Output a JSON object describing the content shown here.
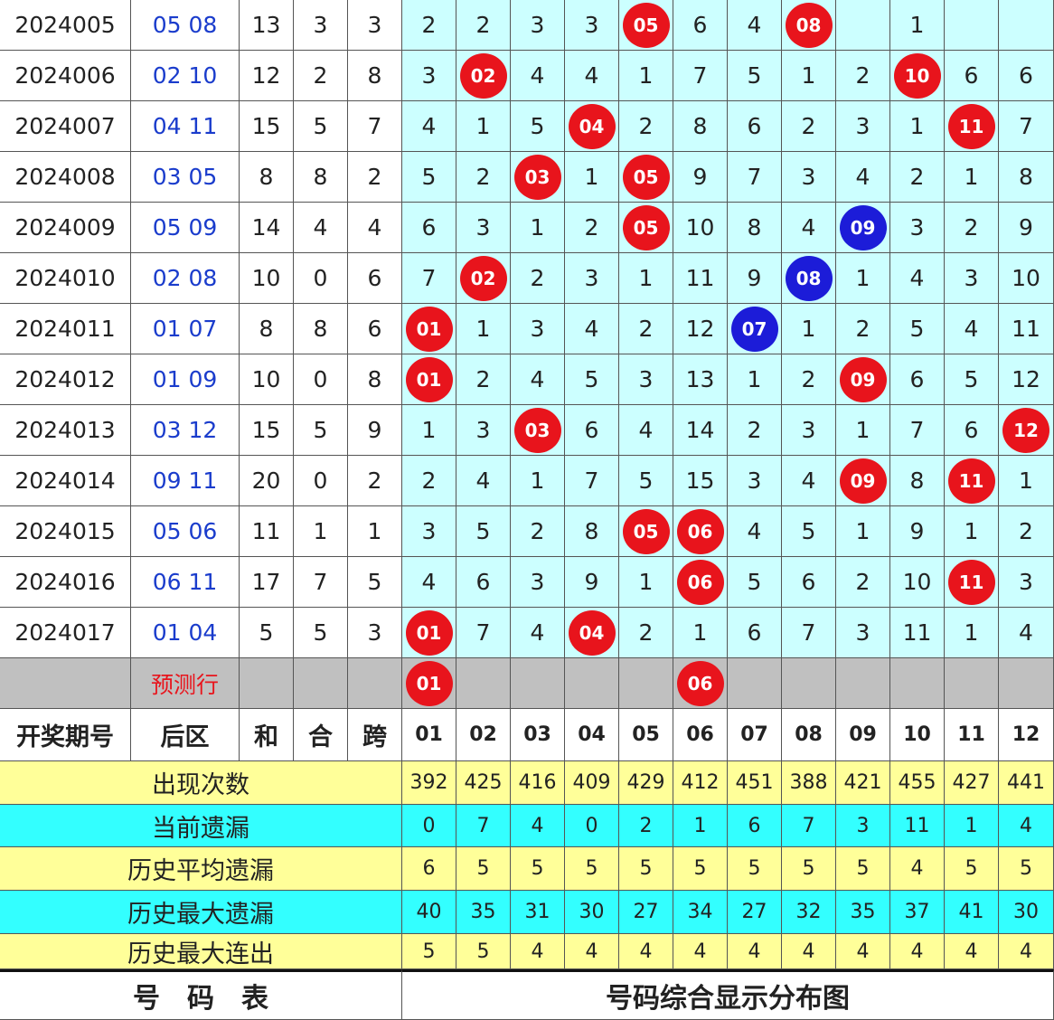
{
  "header": [
    "开奖期号",
    "后区",
    "和",
    "合",
    "跨",
    "01",
    "02",
    "03",
    "04",
    "05",
    "06",
    "07",
    "08",
    "09",
    "10",
    "11",
    "12"
  ],
  "rows": [
    {
      "period": "2024005",
      "back": "05 08",
      "sum": 13,
      "odd": 3,
      "span": 3,
      "cells": [
        2,
        2,
        3,
        3,
        {
          "text": "05",
          "color": "#e8141c"
        },
        6,
        4,
        {
          "text": "08",
          "color": "#e8141c"
        },
        null,
        1,
        null,
        null
      ]
    },
    {
      "period": "2024006",
      "back": "02 10",
      "sum": 12,
      "odd": 2,
      "span": 8,
      "cells": [
        3,
        {
          "text": "02",
          "color": "#e8141c"
        },
        4,
        4,
        1,
        7,
        5,
        1,
        2,
        {
          "text": "10",
          "color": "#e8141c"
        },
        6,
        6
      ]
    },
    {
      "period": "2024007",
      "back": "04 11",
      "sum": 15,
      "odd": 5,
      "span": 7,
      "cells": [
        4,
        1,
        5,
        {
          "text": "04",
          "color": "#e8141c"
        },
        2,
        8,
        6,
        2,
        3,
        1,
        {
          "text": "11",
          "color": "#e8141c"
        },
        7
      ]
    },
    {
      "period": "2024008",
      "back": "03 05",
      "sum": 8,
      "odd": 8,
      "span": 2,
      "cells": [
        5,
        2,
        {
          "text": "03",
          "color": "#e8141c"
        },
        1,
        {
          "text": "05",
          "color": "#e8141c"
        },
        9,
        7,
        3,
        4,
        2,
        1,
        8
      ]
    },
    {
      "period": "2024009",
      "back": "05 09",
      "sum": 14,
      "odd": 4,
      "span": 4,
      "cells": [
        6,
        3,
        1,
        2,
        {
          "text": "05",
          "color": "#e8141c"
        },
        10,
        8,
        4,
        {
          "text": "09",
          "color": "#1c1cd8"
        },
        3,
        2,
        9
      ]
    },
    {
      "period": "2024010",
      "back": "02 08",
      "sum": 10,
      "odd": 0,
      "span": 6,
      "cells": [
        7,
        {
          "text": "02",
          "color": "#e8141c"
        },
        2,
        3,
        1,
        11,
        9,
        {
          "text": "08",
          "color": "#1c1cd8"
        },
        1,
        4,
        3,
        10
      ]
    },
    {
      "period": "2024011",
      "back": "01 07",
      "sum": 8,
      "odd": 8,
      "span": 6,
      "cells": [
        {
          "text": "01",
          "color": "#e8141c"
        },
        1,
        3,
        4,
        2,
        12,
        {
          "text": "07",
          "color": "#1c1cd8"
        },
        1,
        2,
        5,
        4,
        11
      ]
    },
    {
      "period": "2024012",
      "back": "01 09",
      "sum": 10,
      "odd": 0,
      "span": 8,
      "cells": [
        {
          "text": "01",
          "color": "#e8141c"
        },
        2,
        4,
        5,
        3,
        13,
        1,
        2,
        {
          "text": "09",
          "color": "#e8141c"
        },
        6,
        5,
        12
      ]
    },
    {
      "period": "2024013",
      "back": "03 12",
      "sum": 15,
      "odd": 5,
      "span": 9,
      "cells": [
        1,
        3,
        {
          "text": "03",
          "color": "#e8141c"
        },
        6,
        4,
        14,
        2,
        3,
        1,
        7,
        6,
        {
          "text": "12",
          "color": "#e8141c"
        }
      ]
    },
    {
      "period": "2024014",
      "back": "09 11",
      "sum": 20,
      "odd": 0,
      "span": 2,
      "cells": [
        2,
        4,
        1,
        7,
        5,
        15,
        3,
        4,
        {
          "text": "09",
          "color": "#e8141c"
        },
        8,
        {
          "text": "11",
          "color": "#e8141c"
        },
        1
      ]
    },
    {
      "period": "2024015",
      "back": "05 06",
      "sum": 11,
      "odd": 1,
      "span": 1,
      "cells": [
        3,
        5,
        2,
        8,
        {
          "text": "05",
          "color": "#e8141c"
        },
        {
          "text": "06",
          "color": "#e8141c"
        },
        4,
        5,
        1,
        9,
        1,
        2
      ]
    },
    {
      "period": "2024016",
      "back": "06 11",
      "sum": 17,
      "odd": 7,
      "span": 5,
      "cells": [
        4,
        6,
        3,
        9,
        1,
        {
          "text": "06",
          "color": "#e8141c"
        },
        5,
        6,
        2,
        10,
        {
          "text": "11",
          "color": "#e8141c"
        },
        3
      ]
    },
    {
      "period": "2024017",
      "back": "01 04",
      "sum": 5,
      "odd": 5,
      "span": 3,
      "cells": [
        {
          "text": "01",
          "color": "#e8141c"
        },
        7,
        4,
        {
          "text": "04",
          "color": "#e8141c"
        },
        2,
        1,
        6,
        7,
        3,
        11,
        1,
        4
      ]
    }
  ],
  "prediction": {
    "label": "预测行",
    "cells": [
      {
        "text": "01",
        "color": "#e8141c"
      },
      null,
      null,
      null,
      null,
      {
        "text": "06",
        "color": "#e8141c"
      },
      null,
      null,
      null,
      null,
      null,
      null
    ]
  },
  "stats": [
    {
      "label": "出现次数",
      "color": "#ffff99",
      "values": [
        392,
        425,
        416,
        409,
        429,
        412,
        451,
        388,
        421,
        455,
        427,
        441
      ]
    },
    {
      "label": "当前遗漏",
      "color": "#33ffff",
      "values": [
        0,
        7,
        4,
        0,
        2,
        1,
        6,
        7,
        3,
        11,
        1,
        4
      ]
    },
    {
      "label": "历史平均遗漏",
      "color": "#ffff99",
      "values": [
        6,
        5,
        5,
        5,
        5,
        5,
        5,
        5,
        5,
        4,
        5,
        5
      ]
    },
    {
      "label": "历史最大遗漏",
      "color": "#33ffff",
      "values": [
        40,
        35,
        31,
        30,
        27,
        34,
        27,
        32,
        35,
        37,
        41,
        30
      ]
    },
    {
      "label": "历史最大连出",
      "color": "#ffff99",
      "values": [
        5,
        5,
        4,
        4,
        4,
        4,
        4,
        4,
        4,
        4,
        4,
        4
      ]
    }
  ],
  "footer": {
    "left": "号　码　表",
    "right": "号码综合显示分布图"
  }
}
